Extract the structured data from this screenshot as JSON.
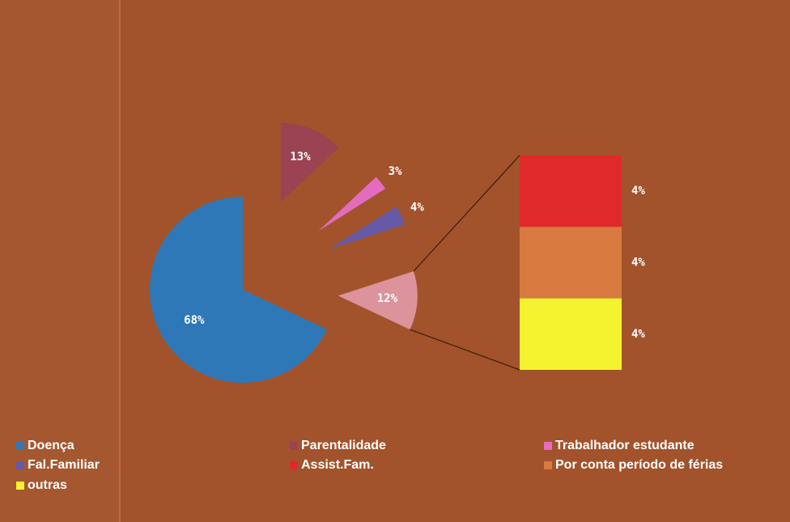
{
  "chart_data": {
    "type": "pie-of-bar",
    "categories": [
      "Doença",
      "Parentalidade",
      "Trabalhador estudante",
      "Fal.Familiar",
      "Assist.Fam.",
      "Por conta período de férias",
      "outras"
    ],
    "values": [
      68,
      13,
      3,
      4,
      4,
      4,
      4
    ],
    "value_labels": [
      "68%",
      "13%",
      "3%",
      "4%",
      "4%",
      "4%",
      "4%"
    ],
    "colors": [
      "#2f78b8",
      "#9b4352",
      "#e36cbf",
      "#6659a6",
      "#e0292b",
      "#d97a40",
      "#f5f22f"
    ],
    "combined": {
      "value": 12,
      "label": "12%",
      "color": "#dc939b"
    }
  }
}
